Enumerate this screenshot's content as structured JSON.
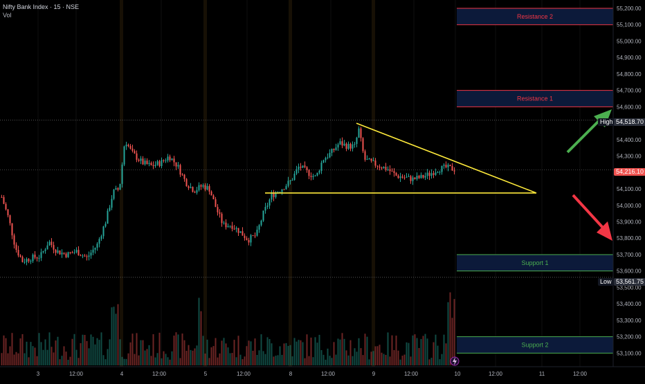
{
  "header": {
    "title": "Nifty Bank Index · 15 · NSE",
    "vol_label": "Vol"
  },
  "chart_data": {
    "type": "candlestick",
    "ylim": [
      53050,
      55250
    ],
    "y_ticks": [
      "55,200.00",
      "55,100.00",
      "55,000.00",
      "54,900.00",
      "54,800.00",
      "54,700.00",
      "54,600.00",
      "54,500.00",
      "54,400.00",
      "54,300.00",
      "54,200.00",
      "54,100.00",
      "54,000.00",
      "53,900.00",
      "53,800.00",
      "53,700.00",
      "53,600.00",
      "53,500.00",
      "53,400.00",
      "53,300.00",
      "53,200.00",
      "53,100.00"
    ],
    "y_tick_values": [
      55200,
      55100,
      55000,
      54900,
      54800,
      54700,
      54600,
      54500,
      54400,
      54300,
      54200,
      54100,
      54000,
      53900,
      53800,
      53700,
      53600,
      53500,
      53400,
      53300,
      53200,
      53100
    ],
    "x_ticks": [
      "3",
      "12:00",
      "4",
      "12:00",
      "5",
      "12:00",
      "8",
      "12:00",
      "9",
      "12:00",
      "10",
      "12:00",
      "11",
      "12:00"
    ],
    "high": {
      "label": "High",
      "value": "54,518.70",
      "num": 54518.7
    },
    "low": {
      "label": "Low",
      "value": "53,561.75",
      "num": 53561.75
    },
    "last": {
      "value": "54,216.10",
      "num": 54216.1
    },
    "zones": [
      {
        "label": "Resistance 2",
        "top": 55200,
        "bottom": 55100,
        "color": "#f23645"
      },
      {
        "label": "Resistance 1",
        "top": 54700,
        "bottom": 54600,
        "color": "#f23645"
      },
      {
        "label": "Support 1",
        "top": 53700,
        "bottom": 53600,
        "color": "#4caf50"
      },
      {
        "label": "Support 2",
        "top": 53200,
        "bottom": 53100,
        "color": "#4caf50"
      }
    ],
    "trend_lines": [
      {
        "name": "descending",
        "from": [
          515,
          54500
        ],
        "to": [
          775,
          54075
        ]
      },
      {
        "name": "horizontal",
        "from": [
          383,
          54075
        ],
        "to": [
          775,
          54075
        ]
      }
    ],
    "arrows": [
      {
        "direction": "up",
        "color": "#4caf50"
      },
      {
        "direction": "down",
        "color": "#f23645"
      }
    ],
    "colors": {
      "up": "#26a69a",
      "down": "#ef5350",
      "trend": "#ffeb3b",
      "bg": "#000000"
    }
  }
}
